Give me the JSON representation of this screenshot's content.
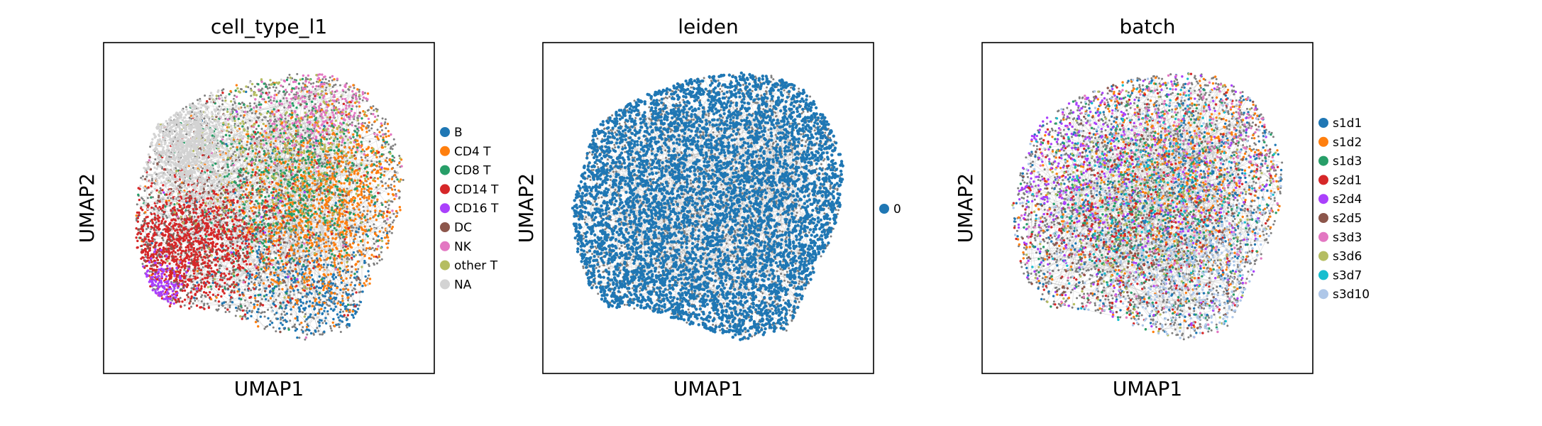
{
  "chart_data": [
    {
      "type": "scatter",
      "title": "cell_type_l1",
      "xlabel": "UMAP1",
      "ylabel": "UMAP2",
      "grid": false,
      "ticks": false,
      "legend_position": "right",
      "background_edges": "gray neighbor-graph edges",
      "series": [
        {
          "name": "B",
          "color": "#1f77b4"
        },
        {
          "name": "CD4 T",
          "color": "#ff7f0e"
        },
        {
          "name": "CD8 T",
          "color": "#279e68"
        },
        {
          "name": "CD14 T",
          "color": "#d62728"
        },
        {
          "name": "CD16 T",
          "color": "#aa40fc"
        },
        {
          "name": "DC",
          "color": "#8c564b"
        },
        {
          "name": "NK",
          "color": "#e377c2"
        },
        {
          "name": "other T",
          "color": "#b5bd61"
        },
        {
          "name": "NA",
          "color": "#d3d3d3"
        }
      ]
    },
    {
      "type": "scatter",
      "title": "leiden",
      "xlabel": "UMAP1",
      "ylabel": "UMAP2",
      "grid": false,
      "ticks": false,
      "legend_position": "right",
      "background_edges": "gray neighbor-graph edges",
      "series": [
        {
          "name": "0",
          "color": "#1f77b4"
        }
      ]
    },
    {
      "type": "scatter",
      "title": "batch",
      "xlabel": "UMAP1",
      "ylabel": "UMAP2",
      "grid": false,
      "ticks": false,
      "legend_position": "right",
      "background_edges": "gray neighbor-graph edges",
      "series": [
        {
          "name": "s1d1",
          "color": "#1f77b4"
        },
        {
          "name": "s1d2",
          "color": "#ff7f0e"
        },
        {
          "name": "s1d3",
          "color": "#279e68"
        },
        {
          "name": "s2d1",
          "color": "#d62728"
        },
        {
          "name": "s2d4",
          "color": "#aa40fc"
        },
        {
          "name": "s2d5",
          "color": "#8c564b"
        },
        {
          "name": "s3d3",
          "color": "#e377c2"
        },
        {
          "name": "s3d6",
          "color": "#b5bd61"
        },
        {
          "name": "s3d7",
          "color": "#17becf"
        },
        {
          "name": "s3d10",
          "color": "#aec7e8"
        }
      ]
    }
  ]
}
